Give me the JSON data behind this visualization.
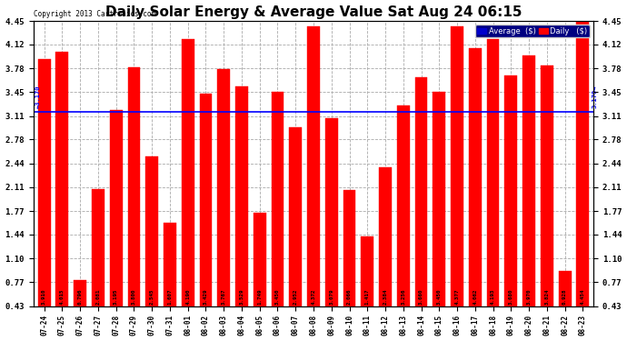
{
  "title": "Daily Solar Energy & Average Value Sat Aug 24 06:15",
  "copyright": "Copyright 2013 Cartronics.com",
  "categories": [
    "07-24",
    "07-25",
    "07-26",
    "07-27",
    "07-28",
    "07-29",
    "07-30",
    "07-31",
    "08-01",
    "08-02",
    "08-03",
    "08-04",
    "08-05",
    "08-06",
    "08-07",
    "08-08",
    "08-09",
    "08-10",
    "08-11",
    "08-12",
    "08-13",
    "08-14",
    "08-15",
    "08-16",
    "08-17",
    "08-18",
    "08-19",
    "08-20",
    "08-21",
    "08-22",
    "08-23"
  ],
  "values": [
    3.91,
    4.015,
    0.796,
    2.081,
    3.195,
    3.8,
    2.545,
    1.607,
    4.19,
    3.429,
    3.767,
    3.529,
    1.749,
    3.45,
    2.952,
    4.372,
    3.079,
    2.066,
    1.417,
    2.384,
    3.256,
    3.66,
    3.45,
    4.377,
    4.062,
    4.193,
    3.68,
    3.97,
    3.824,
    0.928,
    4.454
  ],
  "bar_color": "#ff0000",
  "average_value": 3.17,
  "average_color": "#0000ff",
  "y_ticks": [
    0.43,
    0.77,
    1.1,
    1.44,
    1.77,
    2.11,
    2.44,
    2.78,
    3.11,
    3.45,
    3.78,
    4.12,
    4.45
  ],
  "y_min": 0.43,
  "y_max": 4.45,
  "bg_color": "#ffffff",
  "plot_bg_color": "#ffffff",
  "title_fontsize": 11,
  "legend_avg_color": "#0000cc",
  "legend_daily_color": "#ff0000"
}
